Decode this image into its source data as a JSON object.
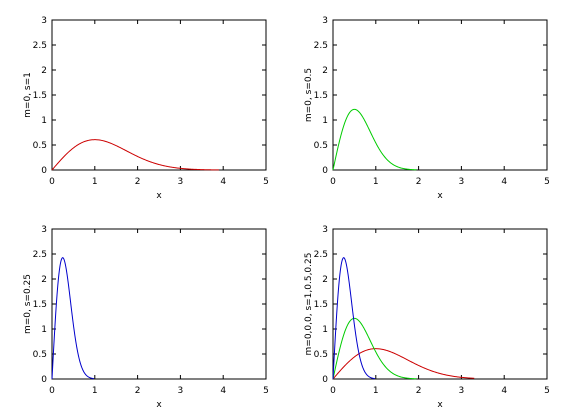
{
  "chart_data": [
    {
      "type": "line",
      "xlabel": "x",
      "ylabel": "m=0, s=1",
      "xlim": [
        0,
        5
      ],
      "ylim": [
        0,
        3
      ],
      "xticks": [
        "0",
        "1",
        "2",
        "3",
        "4",
        "5"
      ],
      "yticks": [
        "0",
        "0.5",
        "1",
        "1.5",
        "2",
        "2.5",
        "3"
      ],
      "series": [
        {
          "color": "#cc0000",
          "sigma": 1,
          "xmax": 3.9
        }
      ]
    },
    {
      "type": "line",
      "xlabel": "x",
      "ylabel": "m=0, s=0.5",
      "xlim": [
        0,
        5
      ],
      "ylim": [
        0,
        3
      ],
      "xticks": [
        "0",
        "1",
        "2",
        "3",
        "4",
        "5"
      ],
      "yticks": [
        "0",
        "0.5",
        "1",
        "1.5",
        "2",
        "2.5",
        "3"
      ],
      "series": [
        {
          "color": "#00cc00",
          "sigma": 0.5,
          "xmax": 1.95
        }
      ]
    },
    {
      "type": "line",
      "xlabel": "x",
      "ylabel": "m=0, s=0.25",
      "xlim": [
        0,
        5
      ],
      "ylim": [
        0,
        3
      ],
      "xticks": [
        "0",
        "1",
        "2",
        "3",
        "4",
        "5"
      ],
      "yticks": [
        "0",
        "0.5",
        "1",
        "1.5",
        "2",
        "2.5",
        "3"
      ],
      "series": [
        {
          "color": "#0000cc",
          "sigma": 0.25,
          "xmax": 0.98
        }
      ]
    },
    {
      "type": "line",
      "xlabel": "x",
      "ylabel": "m=0,0,0, s=1,0.5,0.25",
      "xlim": [
        0,
        5
      ],
      "ylim": [
        0,
        3
      ],
      "xticks": [
        "0",
        "1",
        "2",
        "3",
        "4",
        "5"
      ],
      "yticks": [
        "0",
        "0.5",
        "1",
        "1.5",
        "2",
        "2.5",
        "3"
      ],
      "series": [
        {
          "color": "#cc0000",
          "sigma": 1,
          "xmax": 3.3
        },
        {
          "color": "#00cc00",
          "sigma": 0.5,
          "xmax": 1.95
        },
        {
          "color": "#0000cc",
          "sigma": 0.25,
          "xmax": 0.98
        }
      ]
    }
  ]
}
